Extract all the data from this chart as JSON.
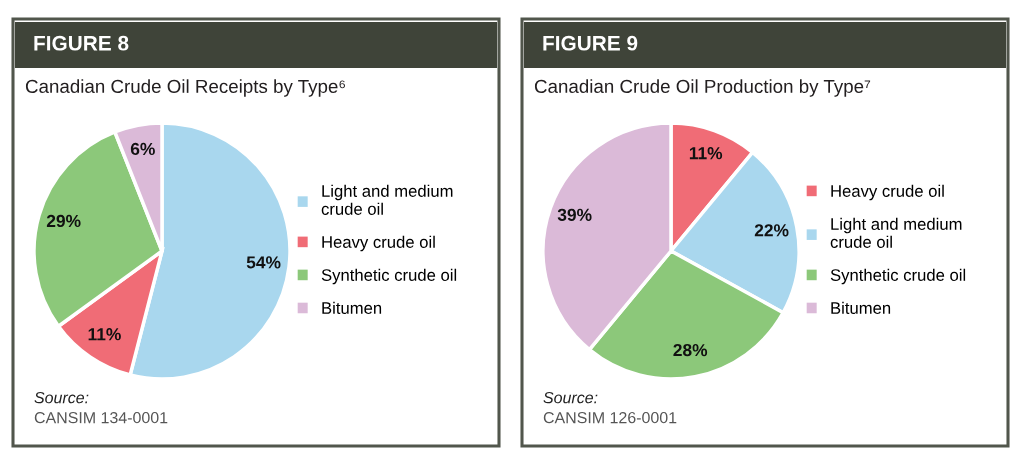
{
  "chart_data": [
    {
      "type": "pie",
      "title": "FIGURE 8",
      "subtitle": "Canadian Crude Oil Receipts by Type⁶",
      "categories": [
        "Light and medium\ncrude oil",
        "Heavy crude oil",
        "Synthetic crude oil",
        "Bitumen"
      ],
      "values": [
        54,
        11,
        29,
        6
      ],
      "value_labels": [
        "54%",
        "11%",
        "29%",
        "6%"
      ],
      "colors": [
        "#a9d7ee",
        "#f06c76",
        "#8cc87a",
        "#dbbad8"
      ],
      "legend": "right",
      "annotations": [
        "Source:",
        "CANSIM 134-0001"
      ]
    },
    {
      "type": "pie",
      "title": "FIGURE 9",
      "subtitle": "Canadian Crude Oil Production by Type⁷",
      "categories": [
        "Heavy crude oil",
        "Light and medium\ncrude oil",
        "Synthetic crude oil",
        "Bitumen"
      ],
      "values": [
        11,
        22,
        28,
        39
      ],
      "value_labels": [
        "11%",
        "22%",
        "28%",
        "39%"
      ],
      "colors": [
        "#f06c76",
        "#a9d7ee",
        "#8cc87a",
        "#dbbad8"
      ],
      "legend": "right",
      "annotations": [
        "Source:",
        "CANSIM 126-0001"
      ]
    }
  ]
}
